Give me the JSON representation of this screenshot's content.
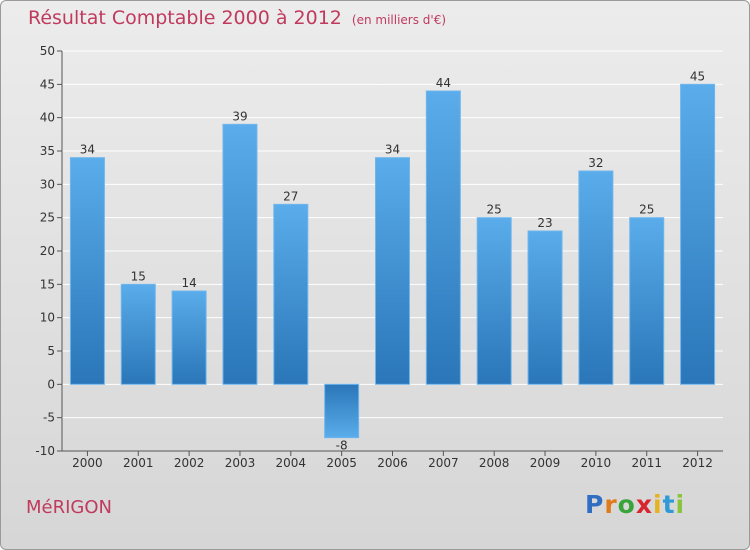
{
  "title": "Résultat Comptable 2000 à 2012",
  "unit": "(en milliers d'€)",
  "commune": "MéRIGON",
  "logo": {
    "text": "Proxiti",
    "letters": [
      "P",
      "r",
      "o",
      "x",
      "i",
      "t",
      "i"
    ],
    "colors": [
      "#2f6ec0",
      "#e07b1b",
      "#3aa43a",
      "#d8262f",
      "#e6b320",
      "#2f9ad6",
      "#8ac43f"
    ]
  },
  "colors": {
    "bar": "#3f8fd6",
    "bar_light": "#5aacea",
    "bar_dark": "#2a76b8",
    "grid": "#ffffff",
    "axis_text": "#333333",
    "title": "#c03a5e"
  },
  "chart_data": {
    "type": "bar",
    "title": "Résultat Comptable 2000 à 2012",
    "subtitle": "(en milliers d'€)",
    "xlabel": "",
    "ylabel": "",
    "categories": [
      "2000",
      "2001",
      "2002",
      "2003",
      "2004",
      "2005",
      "2006",
      "2007",
      "2008",
      "2009",
      "2010",
      "2011",
      "2012"
    ],
    "values": [
      34,
      15,
      14,
      39,
      27,
      -8,
      34,
      44,
      25,
      23,
      32,
      25,
      45
    ],
    "ylim": [
      -10,
      50
    ],
    "yticks": [
      -10,
      -5,
      0,
      5,
      10,
      15,
      20,
      25,
      30,
      35,
      40,
      45,
      50
    ],
    "grid": true
  }
}
